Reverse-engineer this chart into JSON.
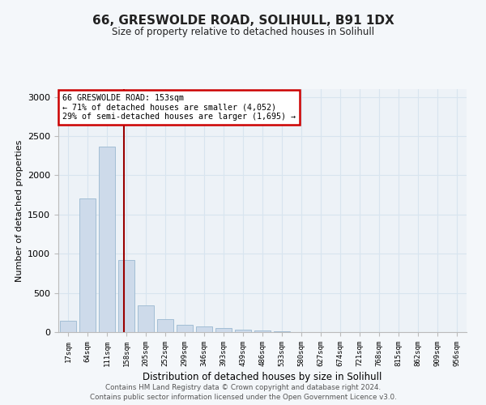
{
  "title1": "66, GRESWOLDE ROAD, SOLIHULL, B91 1DX",
  "title2": "Size of property relative to detached houses in Solihull",
  "xlabel": "Distribution of detached houses by size in Solihull",
  "ylabel": "Number of detached properties",
  "categories": [
    "17sqm",
    "64sqm",
    "111sqm",
    "158sqm",
    "205sqm",
    "252sqm",
    "299sqm",
    "346sqm",
    "393sqm",
    "439sqm",
    "486sqm",
    "533sqm",
    "580sqm",
    "627sqm",
    "674sqm",
    "721sqm",
    "768sqm",
    "815sqm",
    "862sqm",
    "909sqm",
    "956sqm"
  ],
  "bar_values": [
    140,
    1700,
    2370,
    920,
    340,
    165,
    90,
    75,
    50,
    35,
    25,
    10,
    5,
    0,
    0,
    0,
    0,
    0,
    0,
    0,
    0
  ],
  "bar_color": "#cddaea",
  "bar_edge_color": "#9ab8d0",
  "grid_color": "#d8e4ef",
  "annotation_box_text": "66 GRESWOLDE ROAD: 153sqm\n← 71% of detached houses are smaller (4,052)\n29% of semi-detached houses are larger (1,695) →",
  "ylim": [
    0,
    3100
  ],
  "yticks": [
    0,
    500,
    1000,
    1500,
    2000,
    2500,
    3000
  ],
  "footer1": "Contains HM Land Registry data © Crown copyright and database right 2024.",
  "footer2": "Contains public sector information licensed under the Open Government Licence v3.0.",
  "bg_color": "#f4f7fa",
  "plot_bg_color": "#edf2f7",
  "line_color": "#990000",
  "box_edge_color": "#cc0000"
}
